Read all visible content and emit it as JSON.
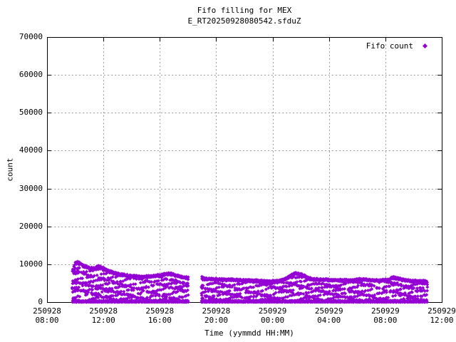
{
  "chart_data": {
    "type": "scatter",
    "title": "Fifo filling for MEX",
    "subtitle": "E_RT20250928080542.sfduZ",
    "xlabel": "Time (yymmdd HH:MM)",
    "ylabel": "count",
    "ylim": [
      0,
      70000
    ],
    "y_ticks": [
      "0",
      "10000",
      "20000",
      "30000",
      "40000",
      "50000",
      "60000",
      "70000"
    ],
    "x_ticks": [
      {
        "date": "250928",
        "time": "08:00"
      },
      {
        "date": "250928",
        "time": "12:00"
      },
      {
        "date": "250928",
        "time": "16:00"
      },
      {
        "date": "250928",
        "time": "20:00"
      },
      {
        "date": "250929",
        "time": "00:00"
      },
      {
        "date": "250929",
        "time": "04:00"
      },
      {
        "date": "250929",
        "time": "08:00"
      },
      {
        "date": "250929",
        "time": "12:00"
      }
    ],
    "x_range_hours_from_first_tick": [
      0,
      28
    ],
    "grid": true,
    "grid_color": "#9e9e9e",
    "legend_position": "top-right-inside",
    "series": [
      {
        "name": "Fifo count",
        "color": "#9400d3",
        "marker": "filled-diamond",
        "description": "Dense band of points filling from 0 up to a wavy upper envelope; two time segments with a gap ~18:05-19:00 on 250928.",
        "band_fill_min_count": 0,
        "band_row_step_counts": 800,
        "band_wave_amp_counts": 640,
        "segments": [
          {
            "start_hour": 1.82,
            "end_hour": 10.06,
            "envelope_hour_count": [
              [
                1.82,
                8800
              ],
              [
                1.95,
                10300
              ],
              [
                2.1,
                10800
              ],
              [
                2.35,
                10500
              ],
              [
                2.6,
                9900
              ],
              [
                2.9,
                9400
              ],
              [
                3.3,
                9100
              ],
              [
                3.65,
                9700
              ],
              [
                4.0,
                9200
              ],
              [
                4.5,
                8300
              ],
              [
                5.0,
                7700
              ],
              [
                5.8,
                7200
              ],
              [
                6.8,
                7000
              ],
              [
                7.5,
                7100
              ],
              [
                8.3,
                7600
              ],
              [
                8.7,
                7800
              ],
              [
                9.1,
                7400
              ],
              [
                9.6,
                6900
              ],
              [
                10.06,
                6600
              ]
            ]
          },
          {
            "start_hour": 10.97,
            "end_hour": 26.99,
            "envelope_hour_count": [
              [
                10.97,
                6800
              ],
              [
                11.3,
                6400
              ],
              [
                12.0,
                6300
              ],
              [
                13.0,
                6200
              ],
              [
                14.0,
                6000
              ],
              [
                15.0,
                5900
              ],
              [
                15.8,
                5700
              ],
              [
                16.4,
                5900
              ],
              [
                16.9,
                6400
              ],
              [
                17.3,
                7300
              ],
              [
                17.6,
                7900
              ],
              [
                18.0,
                7600
              ],
              [
                18.4,
                6900
              ],
              [
                18.8,
                6300
              ],
              [
                19.5,
                6200
              ],
              [
                20.5,
                6100
              ],
              [
                21.5,
                6000
              ],
              [
                22.3,
                6300
              ],
              [
                22.8,
                6100
              ],
              [
                23.5,
                6000
              ],
              [
                24.2,
                6200
              ],
              [
                24.6,
                6800
              ],
              [
                25.0,
                6400
              ],
              [
                25.6,
                6000
              ],
              [
                26.2,
                5800
              ],
              [
                26.99,
                5700
              ]
            ]
          }
        ]
      }
    ]
  }
}
